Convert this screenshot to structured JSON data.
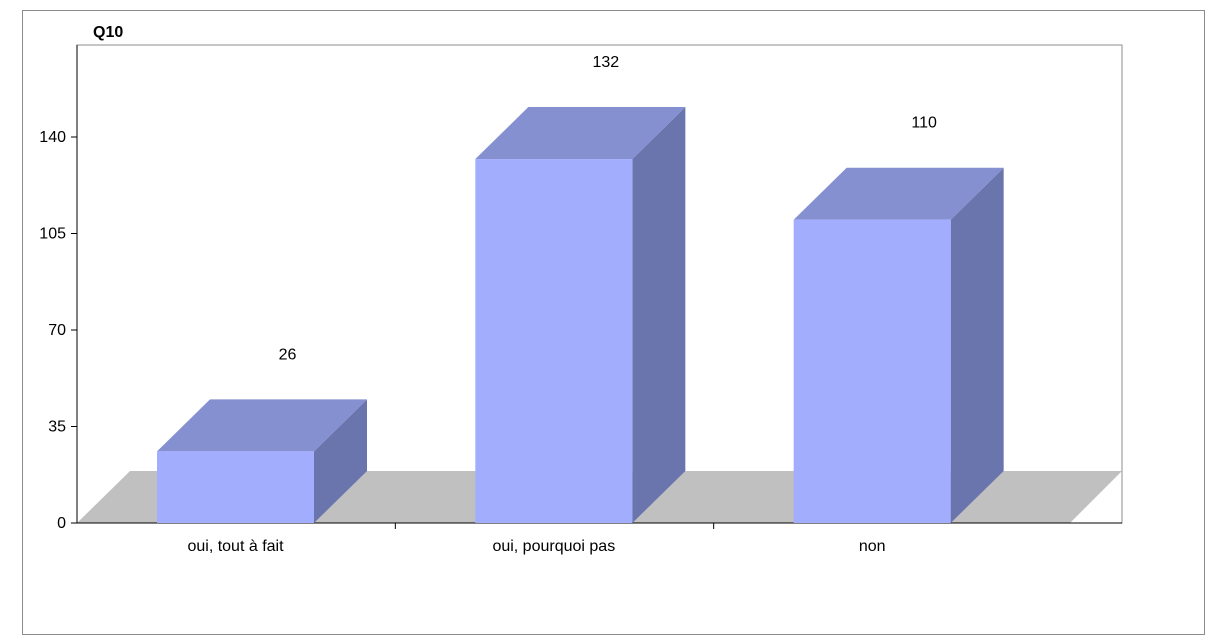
{
  "chart_data": {
    "type": "bar",
    "title": "Q10",
    "categories": [
      "oui, tout à fait",
      "oui, pourquoi pas",
      "non"
    ],
    "values": [
      26,
      132,
      110
    ],
    "ylim": [
      0,
      140
    ],
    "yticks": [
      0,
      35,
      70,
      105,
      140
    ],
    "xlabel": "",
    "ylabel": "",
    "three_d": true,
    "colors": {
      "front": "#a3adfe",
      "top": "#8590d1",
      "side": "#6a75ae",
      "floor": "#c0c0c0",
      "axis": "#000000"
    }
  }
}
